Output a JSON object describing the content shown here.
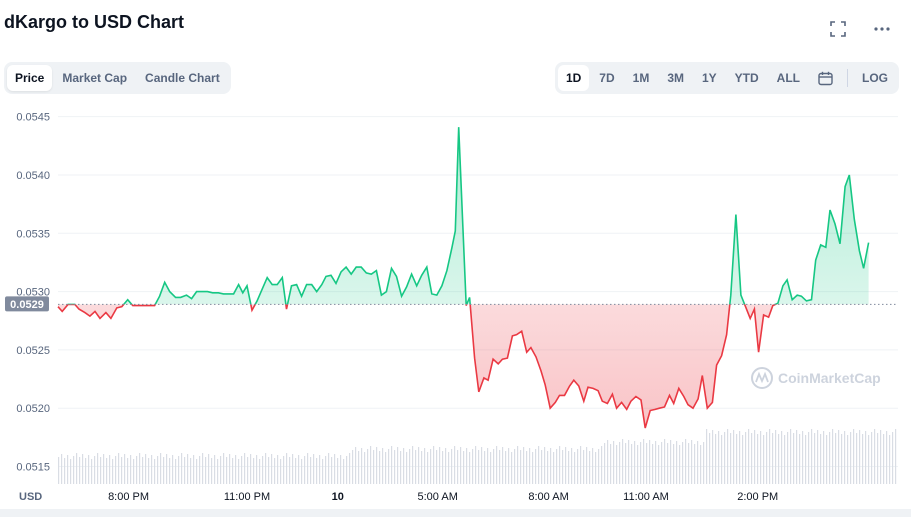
{
  "header": {
    "title": "dKargo to USD Chart"
  },
  "icons": {
    "fullscreen": "expand-icon",
    "more": "more-horizontal-icon",
    "calendar": "calendar-icon"
  },
  "tabs": [
    "Price",
    "Market Cap",
    "Candle Chart"
  ],
  "ranges": [
    "1D",
    "7D",
    "1M",
    "3M",
    "1Y",
    "YTD",
    "ALL"
  ],
  "log_label": "LOG",
  "currency_label": "USD",
  "current_price_badge": "0.0529",
  "watermark": "CoinMarketCap",
  "colors": {
    "up": "#16c784",
    "down": "#ea3943",
    "badge": "#808a9d"
  },
  "chart_data": {
    "type": "line",
    "title": "dKargo to USD Chart",
    "ylabel": "",
    "ylim": [
      0.05135,
      0.0546
    ],
    "yticks": [
      "0.0545",
      "0.0540",
      "0.0535",
      "0.0530",
      "0.0525",
      "0.0520",
      "0.0515"
    ],
    "ytick_values": [
      0.0545,
      0.054,
      0.0535,
      0.053,
      0.0525,
      0.052,
      0.0515
    ],
    "xlim": [
      0,
      100
    ],
    "xticks": [
      {
        "x": 8.4,
        "label": "8:00 PM"
      },
      {
        "x": 22.5,
        "label": "11:00 PM"
      },
      {
        "x": 33.3,
        "label": "10"
      },
      {
        "x": 45.2,
        "label": "5:00 AM"
      },
      {
        "x": 58.4,
        "label": "8:00 AM"
      },
      {
        "x": 70.0,
        "label": "11:00 AM"
      },
      {
        "x": 83.3,
        "label": "2:00 PM"
      }
    ],
    "reference_value": 0.05289,
    "grid": true,
    "series": [
      {
        "points": [
          [
            0,
            0.05287
          ],
          [
            0.5,
            0.05283
          ],
          [
            1.2,
            0.05289
          ],
          [
            2,
            0.05289
          ],
          [
            2.5,
            0.05285
          ],
          [
            3.2,
            0.05282
          ],
          [
            3.8,
            0.05279
          ],
          [
            4.4,
            0.05283
          ],
          [
            5.0,
            0.05277
          ],
          [
            5.7,
            0.05282
          ],
          [
            6.3,
            0.05277
          ],
          [
            7.0,
            0.05286
          ],
          [
            7.6,
            0.05287
          ],
          [
            8.3,
            0.05293
          ],
          [
            8.9,
            0.05288
          ],
          [
            9.6,
            0.05288
          ],
          [
            10.2,
            0.05288
          ],
          [
            10.8,
            0.05288
          ],
          [
            11.5,
            0.05288
          ],
          [
            12.1,
            0.05296
          ],
          [
            12.7,
            0.05308
          ],
          [
            13.3,
            0.053
          ],
          [
            14.0,
            0.05295
          ],
          [
            14.6,
            0.05295
          ],
          [
            15.3,
            0.05297
          ],
          [
            15.9,
            0.05294
          ],
          [
            16.5,
            0.053
          ],
          [
            17.2,
            0.053
          ],
          [
            17.8,
            0.053
          ],
          [
            18.4,
            0.05299
          ],
          [
            19.1,
            0.05299
          ],
          [
            19.7,
            0.05298
          ],
          [
            20.3,
            0.05298
          ],
          [
            20.9,
            0.05298
          ],
          [
            21.5,
            0.05306
          ],
          [
            22.0,
            0.05299
          ],
          [
            22.5,
            0.05305
          ],
          [
            23.1,
            0.05284
          ],
          [
            23.7,
            0.05292
          ],
          [
            24.3,
            0.05302
          ],
          [
            24.9,
            0.05312
          ],
          [
            25.5,
            0.05306
          ],
          [
            26.1,
            0.05306
          ],
          [
            26.7,
            0.05312
          ],
          [
            27.2,
            0.05285
          ],
          [
            27.8,
            0.05305
          ],
          [
            28.4,
            0.05306
          ],
          [
            29.0,
            0.05296
          ],
          [
            29.6,
            0.05306
          ],
          [
            30.2,
            0.05306
          ],
          [
            30.8,
            0.053
          ],
          [
            31.4,
            0.05306
          ],
          [
            31.9,
            0.05313
          ],
          [
            32.5,
            0.05314
          ],
          [
            33.1,
            0.05307
          ],
          [
            33.7,
            0.05317
          ],
          [
            34.3,
            0.05321
          ],
          [
            34.9,
            0.05315
          ],
          [
            35.5,
            0.05321
          ],
          [
            36.1,
            0.05321
          ],
          [
            36.7,
            0.05316
          ],
          [
            37.3,
            0.05315
          ],
          [
            37.9,
            0.05318
          ],
          [
            38.5,
            0.05297
          ],
          [
            39.1,
            0.053
          ],
          [
            39.7,
            0.0532
          ],
          [
            40.3,
            0.05313
          ],
          [
            40.9,
            0.05296
          ],
          [
            41.5,
            0.05304
          ],
          [
            42.1,
            0.05315
          ],
          [
            42.7,
            0.05305
          ],
          [
            43.3,
            0.05314
          ],
          [
            43.9,
            0.05321
          ],
          [
            44.5,
            0.05298
          ],
          [
            45.1,
            0.05297
          ],
          [
            45.7,
            0.05305
          ],
          [
            46.3,
            0.05318
          ],
          [
            46.9,
            0.05338
          ],
          [
            47.3,
            0.05352
          ],
          [
            47.7,
            0.05441
          ],
          [
            48.2,
            0.05355
          ],
          [
            48.6,
            0.05288
          ],
          [
            49.0,
            0.05295
          ],
          [
            49.6,
            0.05243
          ],
          [
            50.1,
            0.05214
          ],
          [
            50.7,
            0.05226
          ],
          [
            51.2,
            0.05224
          ],
          [
            51.8,
            0.05242
          ],
          [
            52.4,
            0.05238
          ],
          [
            52.9,
            0.05242
          ],
          [
            53.5,
            0.05243
          ],
          [
            54.1,
            0.05262
          ],
          [
            54.6,
            0.05263
          ],
          [
            55.2,
            0.05266
          ],
          [
            55.8,
            0.05248
          ],
          [
            56.3,
            0.05252
          ],
          [
            56.9,
            0.05244
          ],
          [
            57.5,
            0.05232
          ],
          [
            58.0,
            0.0522
          ],
          [
            58.6,
            0.052
          ],
          [
            59.2,
            0.05205
          ],
          [
            59.7,
            0.05211
          ],
          [
            60.3,
            0.05211
          ],
          [
            60.9,
            0.05219
          ],
          [
            61.4,
            0.05224
          ],
          [
            62.0,
            0.05219
          ],
          [
            62.6,
            0.05206
          ],
          [
            63.1,
            0.05218
          ],
          [
            63.7,
            0.05217
          ],
          [
            64.3,
            0.05215
          ],
          [
            64.8,
            0.05206
          ],
          [
            65.4,
            0.05204
          ],
          [
            66.0,
            0.05212
          ],
          [
            66.5,
            0.052
          ],
          [
            67.1,
            0.05205
          ],
          [
            67.7,
            0.05199
          ],
          [
            68.2,
            0.05206
          ],
          [
            68.8,
            0.0521
          ],
          [
            69.4,
            0.05207
          ],
          [
            69.9,
            0.05183
          ],
          [
            70.5,
            0.05198
          ],
          [
            71.1,
            0.05199
          ],
          [
            71.6,
            0.052
          ],
          [
            72.2,
            0.05201
          ],
          [
            72.8,
            0.05211
          ],
          [
            73.3,
            0.05204
          ],
          [
            73.9,
            0.05217
          ],
          [
            74.5,
            0.0521
          ],
          [
            75.0,
            0.05203
          ],
          [
            75.6,
            0.052
          ],
          [
            76.2,
            0.05208
          ],
          [
            76.7,
            0.05228
          ],
          [
            77.3,
            0.052
          ],
          [
            77.9,
            0.05205
          ],
          [
            78.4,
            0.05237
          ],
          [
            79.0,
            0.05245
          ],
          [
            79.6,
            0.05263
          ],
          [
            80.1,
            0.05297
          ],
          [
            80.7,
            0.05366
          ],
          [
            81.3,
            0.05297
          ],
          [
            81.8,
            0.05288
          ],
          [
            82.4,
            0.05277
          ],
          [
            82.9,
            0.05285
          ],
          [
            83.4,
            0.05248
          ],
          [
            84.0,
            0.0528
          ],
          [
            84.6,
            0.05278
          ],
          [
            85.1,
            0.05288
          ],
          [
            85.7,
            0.0529
          ],
          [
            86.3,
            0.05305
          ],
          [
            86.8,
            0.0531
          ],
          [
            87.4,
            0.05293
          ],
          [
            88.0,
            0.05297
          ],
          [
            88.5,
            0.05296
          ],
          [
            89.1,
            0.05292
          ],
          [
            89.7,
            0.05293
          ],
          [
            90.2,
            0.05327
          ],
          [
            90.8,
            0.0534
          ],
          [
            91.4,
            0.05338
          ],
          [
            91.9,
            0.0537
          ],
          [
            92.5,
            0.05358
          ],
          [
            93.1,
            0.05341
          ],
          [
            93.7,
            0.0539
          ],
          [
            94.2,
            0.054
          ],
          [
            94.8,
            0.05362
          ],
          [
            95.4,
            0.05335
          ],
          [
            95.9,
            0.0532
          ],
          [
            96.5,
            0.05342
          ]
        ]
      }
    ]
  }
}
